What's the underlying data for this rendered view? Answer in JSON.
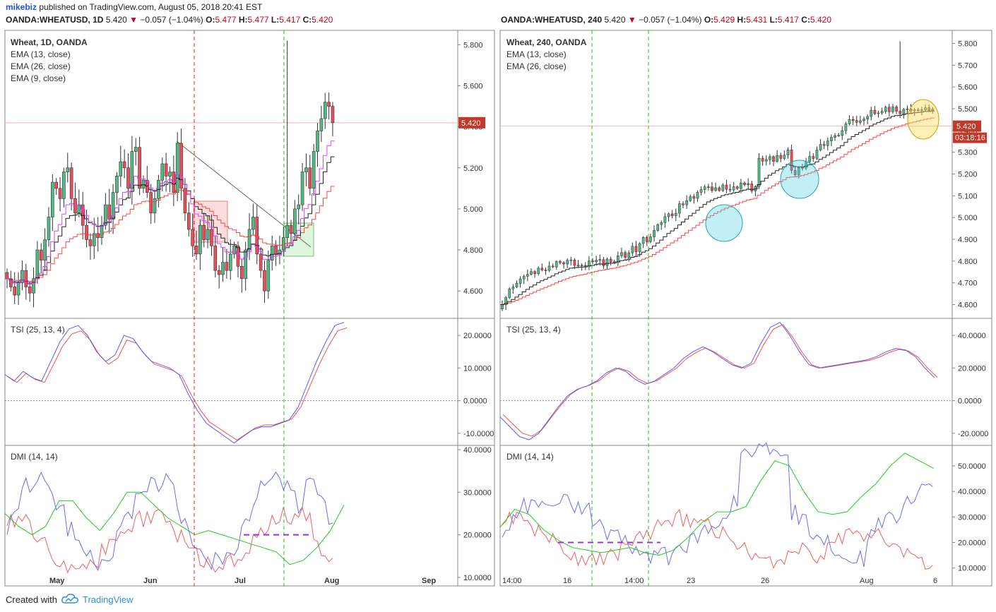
{
  "header": {
    "user": "mikebiz",
    "published_text": "published on TradingView.com, August 05, 2018 20:41 EST"
  },
  "left_symbol": {
    "name": "OANDA:WHEATUSD, 1D",
    "last": "5.420",
    "change": "−0.057 (−1.04%)",
    "o": "5.477",
    "h": "5.477",
    "l": "5.417",
    "c": "5.420"
  },
  "right_symbol": {
    "name": "OANDA:WHEATUSD, 240",
    "last": "5.420",
    "change": "−0.057 (−1.04%)",
    "o": "5.429",
    "h": "5.431",
    "l": "5.417",
    "c": "5.420"
  },
  "footer": {
    "created_with": "Created with",
    "brand": "TradingView"
  },
  "colors": {
    "up": "#53b987",
    "down": "#eb4d5c",
    "up_dark": "#2e7d4f",
    "down_dark": "#c0392b",
    "ema13": "#222222",
    "ema26": "#ff4444",
    "ema9": "#e040fb",
    "tsi": "#5b5bef",
    "tsi_signal": "#ef5350",
    "di_plus": "#6c6cf0",
    "di_minus": "#f06060",
    "adx": "#22cc22"
  },
  "chart_data": [
    {
      "type": "candlestick",
      "panel": "Wheat, 1D, OANDA",
      "indicators": [
        "EMA (13, close)",
        "EMA (26, close)",
        "EMA (9, close)"
      ],
      "y_ticks": [
        "5.800",
        "5.600",
        "5.400",
        "5.200",
        "5.000",
        "4.800",
        "4.600"
      ],
      "ylim": [
        4.47,
        5.87
      ],
      "last_price_label": "5.420",
      "last_price": 5.42,
      "x_ticks": [
        "May",
        "Jun",
        "Jul",
        "Aug",
        "Sep"
      ],
      "closes": [
        4.66,
        4.62,
        4.58,
        4.64,
        4.7,
        4.62,
        4.59,
        4.66,
        4.8,
        4.75,
        4.85,
        4.96,
        5.13,
        5.1,
        5.05,
        5.18,
        5.2,
        5.05,
        4.98,
        5.02,
        4.92,
        4.85,
        4.82,
        4.88,
        4.86,
        4.92,
        5.02,
        4.95,
        5.08,
        5.16,
        5.23,
        5.2,
        5.1,
        5.28,
        5.3,
        5.1,
        5.14,
        5.08,
        4.98,
        5.05,
        5.14,
        5.22,
        5.16,
        5.18,
        5.08,
        5.32,
        5.1,
        4.98,
        4.9,
        4.82,
        4.78,
        4.92,
        4.85,
        4.9,
        4.82,
        4.7,
        4.68,
        4.74,
        4.7,
        4.78,
        4.82,
        4.72,
        4.66,
        4.8,
        4.9,
        4.96,
        4.78,
        4.7,
        4.6,
        4.75,
        4.82,
        4.78,
        4.8,
        4.86,
        4.92,
        4.88,
        5.0,
        5.02,
        5.18,
        5.2,
        5.1,
        5.28,
        5.38,
        5.44,
        5.52,
        5.5,
        5.42
      ]
    },
    {
      "type": "line",
      "panel": "TSI (25, 13, 4)",
      "y_ticks": [
        "20.0000",
        "10.0000",
        "0.0000",
        "-10.0000"
      ],
      "ylim": [
        -13.5,
        25
      ]
    },
    {
      "type": "line",
      "panel": "DMI (14, 14)",
      "y_ticks": [
        "40.0000",
        "30.0000",
        "20.0000",
        "10.0000"
      ],
      "ylim": [
        8,
        41
      ]
    },
    {
      "type": "candlestick",
      "panel": "Wheat, 240, OANDA",
      "indicators": [
        "EMA (13, close)",
        "EMA (26, close)"
      ],
      "y_ticks": [
        "5.800",
        "5.700",
        "5.600",
        "5.500",
        "5.400",
        "5.300",
        "5.200",
        "5.100",
        "5.000",
        "4.900",
        "4.800",
        "4.700",
        "4.600"
      ],
      "ylim": [
        4.54,
        5.86
      ],
      "last_price_label": "5.420",
      "countdown_label": "03:18:16",
      "last_price": 5.42,
      "x_ticks": [
        "14:00",
        "16",
        "14:00",
        "23",
        "26",
        "Aug",
        "6"
      ]
    },
    {
      "type": "line",
      "panel": "TSI (25, 13, 4)",
      "y_ticks": [
        "40.0000",
        "20.0000",
        "0.0000",
        "-20.0000"
      ],
      "ylim": [
        -27,
        50
      ]
    },
    {
      "type": "line",
      "panel": "DMI (14, 14)",
      "y_ticks": [
        "50.0000",
        "40.0000",
        "30.0000",
        "20.0000",
        "10.0000"
      ],
      "ylim": [
        3,
        58
      ]
    }
  ]
}
